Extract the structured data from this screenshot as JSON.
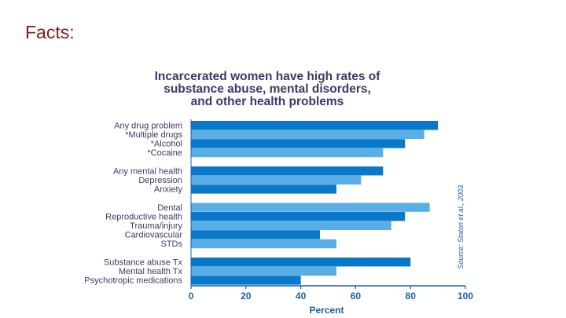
{
  "slide": {
    "title": "Facts:"
  },
  "colors": {
    "dark_bar": "#0a78c8",
    "light_bar": "#5aaee6",
    "title_text": "#3a3a6a",
    "axis": "#1a5fa0",
    "slide_title": "#8b1a1a"
  },
  "chart_data": {
    "type": "bar",
    "orientation": "horizontal",
    "title_lines": [
      "Incarcerated women have high rates of",
      "substance abuse, mental disorders,",
      "and other health problems"
    ],
    "xlabel": "Percent",
    "xlim": [
      0,
      100
    ],
    "xticks": [
      0,
      20,
      40,
      60,
      80,
      100
    ],
    "source": "Source: Staton et al., 2003.",
    "groups": [
      {
        "bars": [
          {
            "label": "Any drug problem",
            "value": 90,
            "shade": "dark"
          },
          {
            "label": "*Multiple drugs",
            "value": 85,
            "shade": "light"
          },
          {
            "label": "*Alcohol",
            "value": 78,
            "shade": "dark"
          },
          {
            "label": "*Cocaine",
            "value": 70,
            "shade": "light"
          }
        ]
      },
      {
        "bars": [
          {
            "label": "Any mental health",
            "value": 70,
            "shade": "dark"
          },
          {
            "label": "Depression",
            "value": 62,
            "shade": "light"
          },
          {
            "label": "Anxiety",
            "value": 53,
            "shade": "dark"
          }
        ]
      },
      {
        "bars": [
          {
            "label": "Dental",
            "value": 87,
            "shade": "light"
          },
          {
            "label": "Reproductive health",
            "value": 78,
            "shade": "dark"
          },
          {
            "label": "Trauma/injury",
            "value": 73,
            "shade": "light"
          },
          {
            "label": "Cardiovascular",
            "value": 47,
            "shade": "dark"
          },
          {
            "label": "STDs",
            "value": 53,
            "shade": "light"
          }
        ]
      },
      {
        "bars": [
          {
            "label": "Substance abuse Tx",
            "value": 80,
            "shade": "dark"
          },
          {
            "label": "Mental health Tx",
            "value": 53,
            "shade": "light"
          },
          {
            "label": "Psychotropic medications",
            "value": 40,
            "shade": "dark"
          }
        ]
      }
    ]
  }
}
